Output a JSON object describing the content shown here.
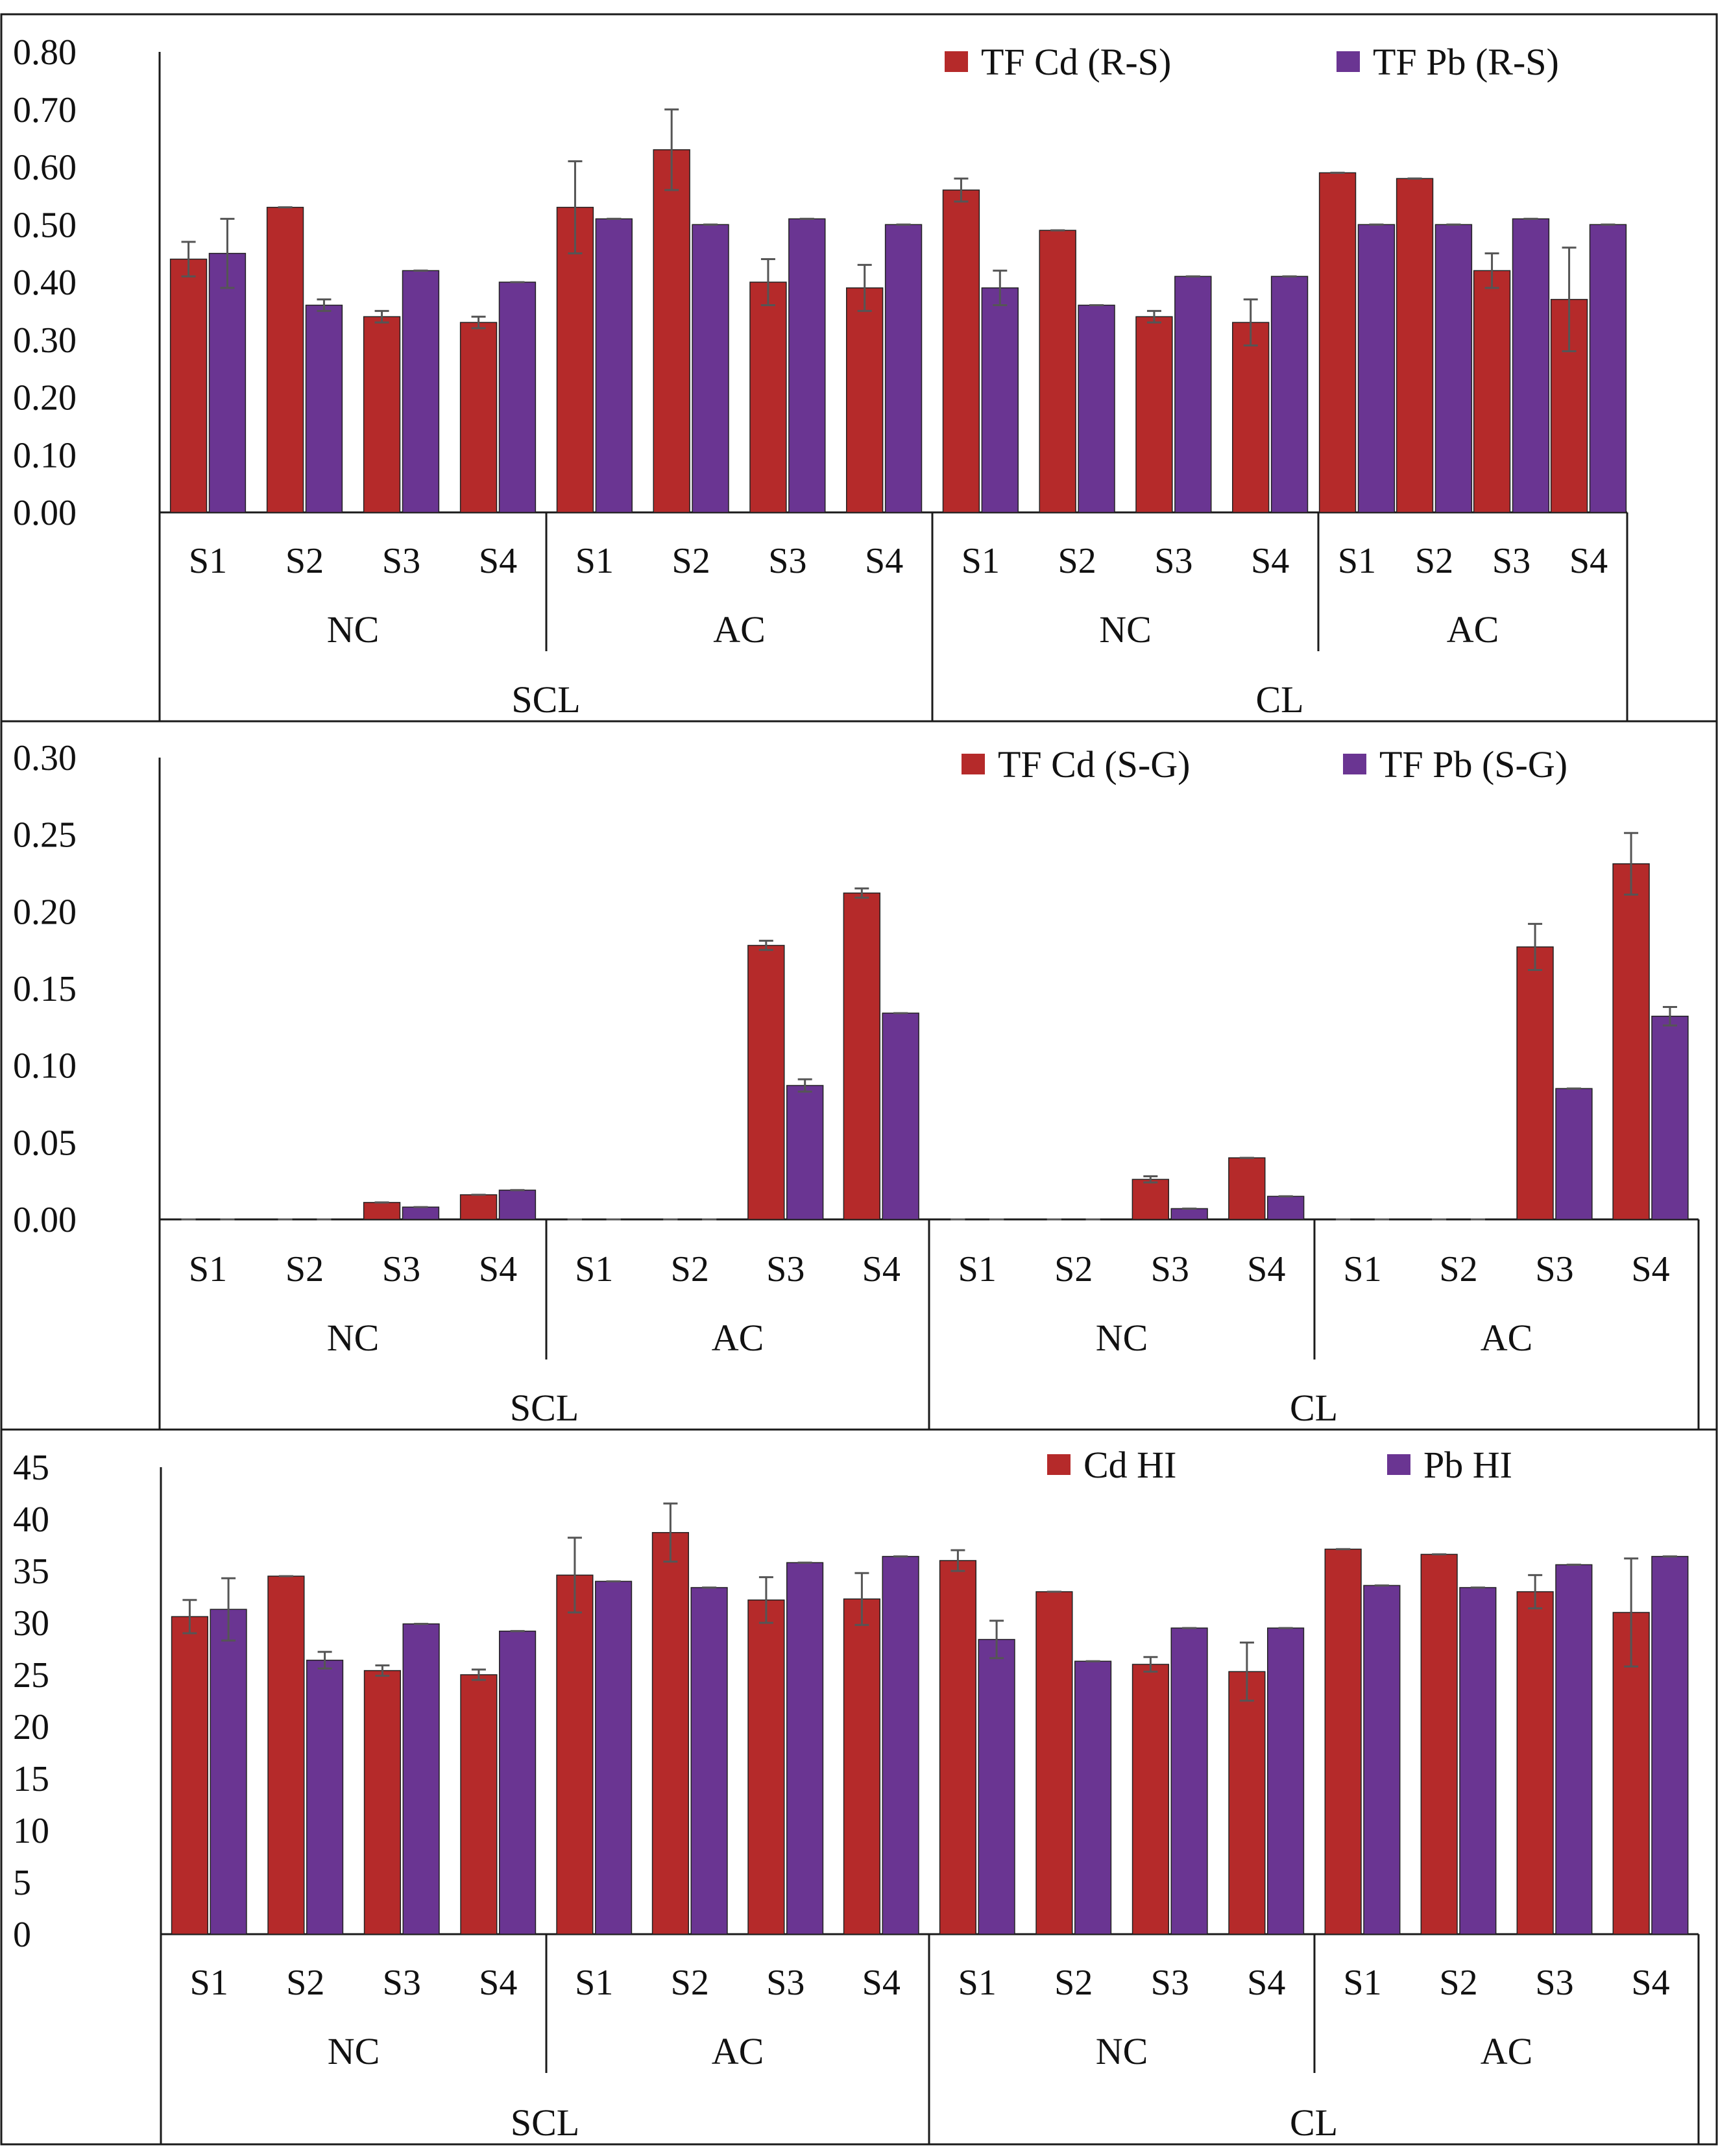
{
  "chart_data": [
    {
      "type": "bar",
      "title": "",
      "xlabel": "",
      "ylabel": "",
      "ylim": [
        0,
        0.8
      ],
      "yticks": [
        "0.00",
        "0.10",
        "0.20",
        "0.30",
        "0.40",
        "0.50",
        "0.60",
        "0.70",
        "0.80"
      ],
      "grid": false,
      "legend_position": "top-right",
      "soils": [
        "SCL",
        "CL"
      ],
      "treatments": [
        "NC",
        "AC"
      ],
      "categories": [
        "S1",
        "S2",
        "S3",
        "S4",
        "S1",
        "S2",
        "S3",
        "S4",
        "S1",
        "S2",
        "S3",
        "S4",
        "S1",
        "S2",
        "S3",
        "S4"
      ],
      "series": [
        {
          "name": "TF Cd (R-S)",
          "color": "#b52a2a",
          "values": [
            0.44,
            0.53,
            0.34,
            0.33,
            0.53,
            0.63,
            0.4,
            0.39,
            0.56,
            0.49,
            0.34,
            0.33,
            0.59,
            0.58,
            0.42,
            0.37
          ],
          "errors": [
            0.03,
            0.0,
            0.01,
            0.01,
            0.08,
            0.07,
            0.04,
            0.04,
            0.02,
            0.0,
            0.01,
            0.04,
            0.0,
            0.0,
            0.03,
            0.09
          ]
        },
        {
          "name": "TF Pb (R-S)",
          "color": "#6a3592",
          "values": [
            0.45,
            0.36,
            0.42,
            0.4,
            0.51,
            0.5,
            0.51,
            0.5,
            0.39,
            0.36,
            0.41,
            0.41,
            0.5,
            0.5,
            0.51,
            0.5
          ],
          "errors": [
            0.06,
            0.01,
            0.0,
            0.0,
            0.0,
            0.0,
            0.0,
            0.0,
            0.03,
            0.0,
            0.0,
            0.0,
            0.0,
            0.0,
            0.0,
            0.0
          ]
        }
      ]
    },
    {
      "type": "bar",
      "title": "",
      "xlabel": "",
      "ylabel": "",
      "ylim": [
        0,
        0.3
      ],
      "yticks": [
        "0.00",
        "0.05",
        "0.10",
        "0.15",
        "0.20",
        "0.25",
        "0.30"
      ],
      "grid": false,
      "legend_position": "top-right",
      "soils": [
        "SCL",
        "CL"
      ],
      "treatments": [
        "NC",
        "AC"
      ],
      "categories": [
        "S1",
        "S2",
        "S3",
        "S4",
        "S1",
        "S2",
        "S3",
        "S4",
        "S1",
        "S2",
        "S3",
        "S4",
        "S1",
        "S2",
        "S3",
        "S4"
      ],
      "series": [
        {
          "name": "TF Cd (S-G)",
          "color": "#b52a2a",
          "values": [
            0.0,
            0.0,
            0.011,
            0.016,
            0.0,
            0.0,
            0.178,
            0.212,
            0.0,
            0.0,
            0.026,
            0.04,
            0.0,
            0.0,
            0.177,
            0.231
          ],
          "errors": [
            0.0,
            0.0,
            0.0,
            0.0,
            0.0,
            0.0,
            0.003,
            0.003,
            0.0,
            0.0,
            0.002,
            0.0,
            0.0,
            0.0,
            0.015,
            0.02
          ]
        },
        {
          "name": "TF Pb (S-G)",
          "color": "#6a3592",
          "values": [
            0.0,
            0.0,
            0.008,
            0.019,
            0.0,
            0.0,
            0.087,
            0.134,
            0.0,
            0.0,
            0.007,
            0.015,
            0.0,
            0.0,
            0.085,
            0.132
          ],
          "errors": [
            0.0,
            0.0,
            0.0,
            0.0,
            0.0,
            0.0,
            0.004,
            0.0,
            0.0,
            0.0,
            0.0,
            0.0,
            0.0,
            0.0,
            0.0,
            0.006
          ]
        }
      ]
    },
    {
      "type": "bar",
      "title": "",
      "xlabel": "",
      "ylabel": "",
      "ylim": [
        0,
        45
      ],
      "yticks": [
        "0",
        "5",
        "10",
        "15",
        "20",
        "25",
        "30",
        "35",
        "40",
        "45"
      ],
      "grid": false,
      "legend_position": "top-right",
      "soils": [
        "SCL",
        "CL"
      ],
      "treatments": [
        "NC",
        "AC"
      ],
      "categories": [
        "S1",
        "S2",
        "S3",
        "S4",
        "S1",
        "S2",
        "S3",
        "S4",
        "S1",
        "S2",
        "S3",
        "S4",
        "S1",
        "S2",
        "S3",
        "S4"
      ],
      "series": [
        {
          "name": "Cd HI",
          "color": "#b52a2a",
          "values": [
            30.6,
            34.5,
            25.4,
            25.0,
            34.6,
            38.7,
            32.2,
            32.3,
            36.0,
            33.0,
            26.0,
            25.3,
            37.1,
            36.6,
            33.0,
            31.0
          ],
          "errors": [
            1.6,
            0.0,
            0.5,
            0.5,
            3.6,
            2.8,
            2.2,
            2.5,
            1.0,
            0.0,
            0.7,
            2.8,
            0.0,
            0.0,
            1.6,
            5.2
          ]
        },
        {
          "name": "Pb HI",
          "color": "#6a3592",
          "values": [
            31.3,
            26.4,
            29.9,
            29.2,
            34.0,
            33.4,
            35.8,
            36.4,
            28.4,
            26.3,
            29.5,
            29.5,
            33.6,
            33.4,
            35.6,
            36.4
          ],
          "errors": [
            3.0,
            0.8,
            0.0,
            0.0,
            0.0,
            0.0,
            0.0,
            0.0,
            1.8,
            0.0,
            0.0,
            0.0,
            0.0,
            0.0,
            0.0,
            0.0
          ]
        }
      ]
    }
  ]
}
